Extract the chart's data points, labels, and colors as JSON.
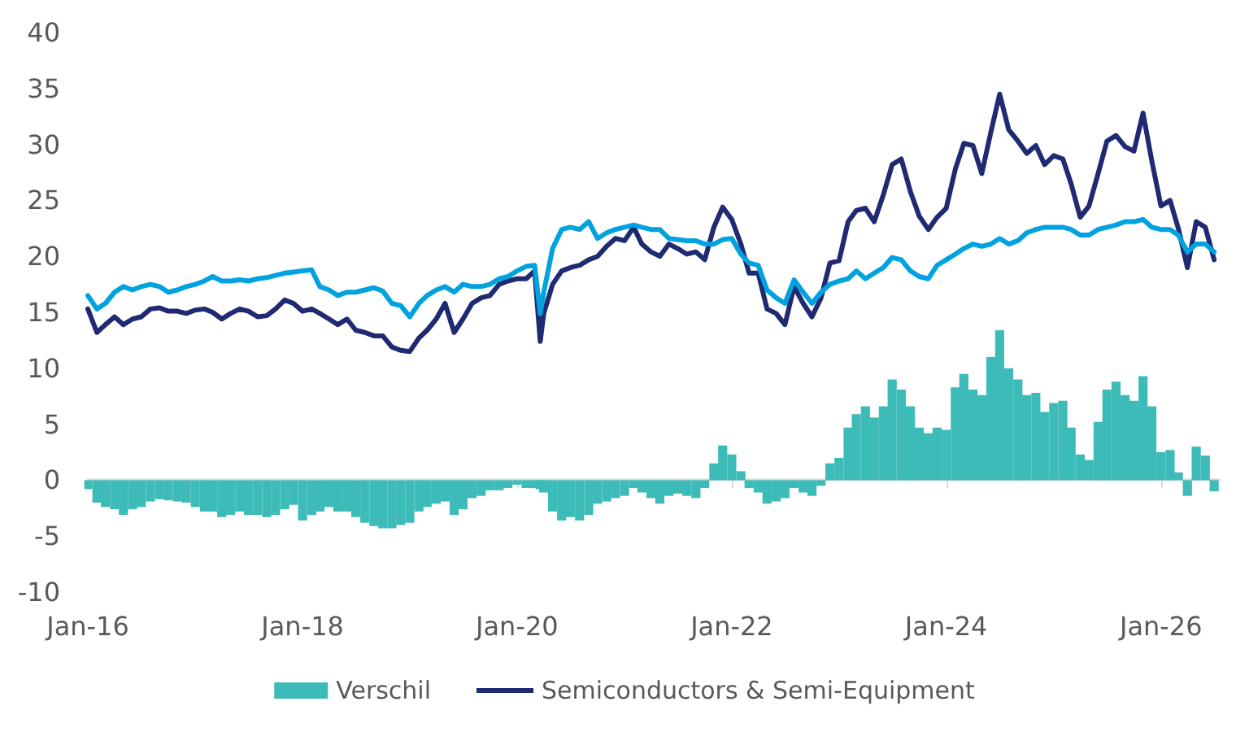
{
  "chart_data": {
    "type": "line",
    "x": [
      "2016-01",
      "2016-02",
      "2016-03",
      "2016-04",
      "2016-05",
      "2016-06",
      "2016-07",
      "2016-08",
      "2016-09",
      "2016-10",
      "2016-11",
      "2016-12",
      "2017-01",
      "2017-02",
      "2017-03",
      "2017-04",
      "2017-05",
      "2017-06",
      "2017-07",
      "2017-08",
      "2017-09",
      "2017-10",
      "2017-11",
      "2017-12",
      "2018-01",
      "2018-02",
      "2018-03",
      "2018-04",
      "2018-05",
      "2018-06",
      "2018-07",
      "2018-08",
      "2018-09",
      "2018-10",
      "2018-11",
      "2018-12",
      "2019-01",
      "2019-02",
      "2019-03",
      "2019-04",
      "2019-05",
      "2019-06",
      "2019-07",
      "2019-08",
      "2019-09",
      "2019-10",
      "2019-11",
      "2019-12",
      "2020-01",
      "2020-02",
      "2020-03",
      "2020-03-20",
      "2020-04",
      "2020-05",
      "2020-06",
      "2020-07",
      "2020-08",
      "2020-09",
      "2020-10",
      "2020-11",
      "2020-12",
      "2021-01",
      "2021-02",
      "2021-03",
      "2021-04",
      "2021-05",
      "2021-06",
      "2021-07",
      "2021-08",
      "2021-09",
      "2021-10",
      "2021-11",
      "2021-12",
      "2022-01",
      "2022-02",
      "2022-03",
      "2022-04",
      "2022-05",
      "2022-06",
      "2022-07",
      "2022-08",
      "2022-09",
      "2022-10",
      "2022-11",
      "2022-12",
      "2023-01",
      "2023-02",
      "2023-03",
      "2023-04",
      "2023-05",
      "2023-06",
      "2023-07",
      "2023-08",
      "2023-09",
      "2023-10",
      "2023-11",
      "2023-12",
      "2024-01",
      "2024-02",
      "2024-03",
      "2024-04",
      "2024-05",
      "2024-06",
      "2024-07",
      "2024-08",
      "2024-09",
      "2024-10",
      "2024-11",
      "2024-12",
      "2025-01",
      "2025-02",
      "2025-03",
      "2025-04",
      "2025-05",
      "2025-06",
      "2025-07",
      "2025-08",
      "2025-09",
      "2025-10",
      "2025-11",
      "2025-12",
      "2026-01",
      "2026-02",
      "2026-03",
      "2026-04",
      "2026-05",
      "2026-06",
      "2026-07"
    ],
    "series": [
      {
        "name": "Verschil",
        "type": "bar",
        "color": "#3dbbb9",
        "values": [
          -0.8,
          -2.0,
          -2.4,
          -2.6,
          -3.1,
          -2.6,
          -2.4,
          -1.9,
          -1.7,
          -1.8,
          -1.9,
          -2.0,
          -2.4,
          -2.8,
          -2.8,
          -3.3,
          -3.1,
          -2.8,
          -3.1,
          -3.1,
          -3.3,
          -3.1,
          -2.6,
          -2.2,
          -3.6,
          -3.1,
          -2.8,
          -2.4,
          -2.8,
          -2.8,
          -3.3,
          -3.8,
          -4.1,
          -4.3,
          -4.3,
          -4.0,
          -3.8,
          -2.8,
          -2.4,
          -2.1,
          -1.9,
          -3.1,
          -2.6,
          -1.6,
          -1.4,
          -0.9,
          -0.9,
          -0.7,
          -0.4,
          -0.7,
          -0.7,
          -0.8,
          -1.1,
          -2.8,
          -3.6,
          -3.3,
          -3.6,
          -3.1,
          -2.1,
          -1.9,
          -1.6,
          -1.4,
          -0.7,
          -1.1,
          -1.6,
          -2.1,
          -1.4,
          -1.2,
          -1.4,
          -1.6,
          -0.7,
          1.5,
          3.1,
          2.3,
          0.8,
          -0.7,
          -1.1,
          -2.1,
          -1.9,
          -1.6,
          -0.7,
          -1.1,
          -1.4,
          -0.5,
          1.5,
          2.0,
          4.7,
          5.9,
          6.6,
          5.6,
          6.6,
          9.0,
          8.1,
          6.6,
          4.7,
          4.2,
          4.7,
          4.5,
          8.3,
          9.5,
          8.1,
          7.6,
          11.0,
          13.4,
          10.0,
          9.0,
          7.6,
          7.8,
          6.1,
          6.9,
          7.1,
          4.7,
          2.3,
          1.8,
          5.2,
          8.1,
          8.8,
          7.6,
          7.1,
          9.3,
          6.6,
          2.5,
          2.7,
          0.7,
          -1.4,
          3.0,
          2.2,
          -1.0
        ]
      },
      {
        "name": "Semiconductors & Semi-Equipment",
        "color": "#1f2a72",
        "values": [
          15.3,
          13.2,
          13.9,
          14.6,
          13.9,
          14.4,
          14.6,
          15.3,
          15.4,
          15.1,
          15.1,
          14.9,
          15.2,
          15.3,
          15.0,
          14.4,
          14.9,
          15.3,
          15.1,
          14.6,
          14.7,
          15.3,
          16.1,
          15.8,
          15.1,
          15.3,
          14.9,
          14.4,
          13.9,
          14.4,
          13.4,
          13.2,
          12.9,
          12.9,
          11.9,
          11.6,
          11.5,
          12.7,
          13.4,
          14.4,
          15.8,
          13.2,
          14.4,
          15.8,
          16.3,
          16.5,
          17.5,
          17.8,
          18.0,
          18.0,
          18.7,
          12.4,
          14.9,
          17.5,
          18.7,
          19.0,
          19.2,
          19.7,
          20.0,
          20.9,
          21.6,
          21.4,
          22.6,
          21.1,
          20.4,
          20.0,
          21.1,
          20.7,
          20.2,
          20.4,
          19.7,
          22.6,
          24.4,
          23.3,
          21.1,
          18.5,
          18.5,
          15.3,
          14.9,
          13.9,
          17.3,
          15.8,
          14.6,
          16.3,
          19.4,
          19.6,
          23.1,
          24.1,
          24.3,
          23.1,
          25.5,
          28.2,
          28.7,
          25.8,
          23.6,
          22.4,
          23.5,
          24.3,
          27.8,
          30.1,
          29.9,
          27.4,
          31.1,
          34.5,
          31.3,
          30.3,
          29.2,
          29.9,
          28.2,
          29.0,
          28.7,
          26.5,
          23.5,
          24.5,
          27.4,
          30.3,
          30.8,
          29.8,
          29.4,
          32.8,
          28.5,
          24.5,
          25.0,
          22.5,
          19.0,
          23.1,
          22.6,
          19.7
        ]
      },
      {
        "color": "#00a2df",
        "values": [
          16.5,
          15.3,
          15.8,
          16.8,
          17.3,
          17.0,
          17.3,
          17.5,
          17.3,
          16.8,
          17.0,
          17.3,
          17.5,
          17.8,
          18.2,
          17.8,
          17.8,
          17.9,
          17.8,
          18.0,
          18.1,
          18.3,
          18.5,
          18.6,
          18.7,
          18.8,
          17.3,
          17.0,
          16.5,
          16.8,
          16.8,
          17.0,
          17.2,
          16.9,
          15.8,
          15.6,
          14.6,
          15.8,
          16.5,
          17.0,
          17.3,
          16.8,
          17.5,
          17.3,
          17.3,
          17.5,
          18.0,
          18.2,
          18.7,
          19.1,
          19.2,
          14.9,
          16.8,
          20.7,
          22.4,
          22.6,
          22.4,
          23.1,
          21.6,
          22.1,
          22.4,
          22.6,
          22.8,
          22.6,
          22.4,
          22.4,
          21.6,
          21.5,
          21.4,
          21.4,
          21.1,
          21.1,
          21.5,
          21.6,
          20.2,
          19.4,
          19.2,
          17.0,
          16.3,
          15.8,
          17.9,
          16.8,
          15.8,
          16.8,
          17.5,
          17.8,
          18.0,
          18.7,
          18.0,
          18.5,
          19.0,
          19.9,
          19.7,
          18.7,
          18.2,
          18.0,
          19.2,
          19.7,
          20.2,
          20.7,
          21.1,
          20.9,
          21.1,
          21.6,
          21.1,
          21.4,
          22.1,
          22.4,
          22.6,
          22.6,
          22.6,
          22.4,
          21.9,
          21.9,
          22.4,
          22.6,
          22.8,
          23.1,
          23.1,
          23.3,
          22.6,
          22.4,
          22.4,
          21.9,
          20.4,
          21.1,
          21.1,
          20.4
        ]
      }
    ],
    "xlim": [
      "2016-01",
      "2026-07-20"
    ],
    "xticks": [
      {
        "value": "2016-01",
        "label": "Jan-16"
      },
      {
        "value": "2018-01",
        "label": "Jan-18"
      },
      {
        "value": "2020-01",
        "label": "Jan-20"
      },
      {
        "value": "2022-01",
        "label": "Jan-22"
      },
      {
        "value": "2024-01",
        "label": "Jan-24"
      },
      {
        "value": "2026-01",
        "label": "Jan-26"
      }
    ],
    "ylim": [
      -10,
      40
    ],
    "yticks": [
      -10,
      -5,
      0,
      5,
      10,
      15,
      20,
      25,
      30,
      35,
      40
    ],
    "legend": "bottom",
    "marker": "none"
  }
}
